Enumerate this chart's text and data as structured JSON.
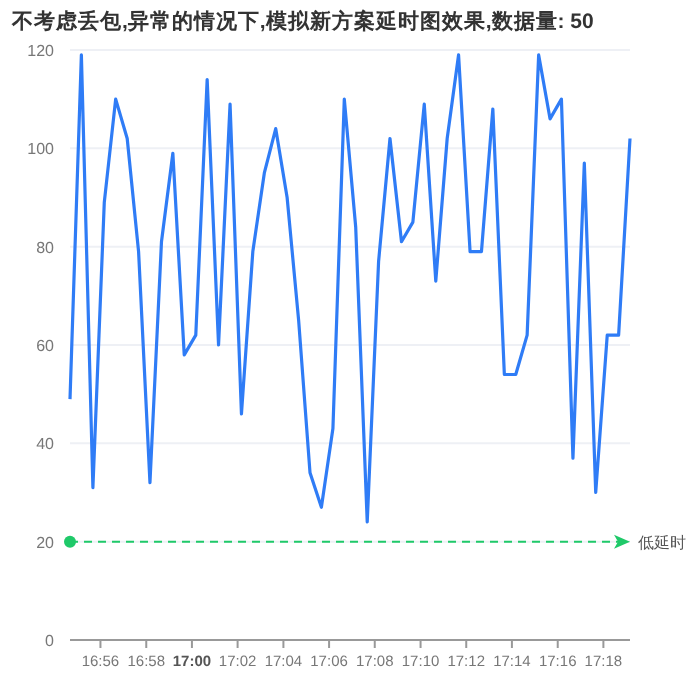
{
  "chart_data": {
    "type": "line",
    "title": "不考虑丢包,异常的情况下,模拟新方案延时图效果,数据量: 50",
    "x": [
      16.9111,
      16.9194,
      16.9278,
      16.9361,
      16.9444,
      16.9528,
      16.9611,
      16.9694,
      16.9778,
      16.9861,
      16.9944,
      17.0028,
      17.0111,
      17.0194,
      17.0278,
      17.0361,
      17.0444,
      17.0528,
      17.0611,
      17.0694,
      17.0778,
      17.0861,
      17.0944,
      17.1028,
      17.1111,
      17.1194,
      17.1278,
      17.1361,
      17.1444,
      17.1528,
      17.1611,
      17.1694,
      17.1778,
      17.1861,
      17.1944,
      17.2028,
      17.2111,
      17.2194,
      17.2278,
      17.2361,
      17.2444,
      17.2528,
      17.2611,
      17.2694,
      17.2778,
      17.2861,
      17.2944,
      17.3028,
      17.3111,
      17.3194
    ],
    "series": [
      {
        "color": "#2f7cf6",
        "values": [
          49,
          119,
          31,
          89,
          110,
          102,
          79,
          32,
          81,
          99,
          58,
          62,
          114,
          60,
          109,
          46,
          79,
          95,
          104,
          90,
          65,
          34,
          27,
          43,
          110,
          84,
          24,
          77,
          102,
          81,
          85,
          109,
          73,
          102,
          119,
          79,
          79,
          108,
          54,
          54,
          62,
          119,
          106,
          110,
          37,
          97,
          30,
          62,
          62,
          102
        ]
      }
    ],
    "xlim": [
      16.9111,
      17.3194
    ],
    "xticks": [
      {
        "value": 16.9333,
        "label": "16:56"
      },
      {
        "value": 16.9667,
        "label": "16:58"
      },
      {
        "value": 17,
        "label": "17:00"
      },
      {
        "value": 17.0333,
        "label": "17:02"
      },
      {
        "value": 17.0667,
        "label": "17:04"
      },
      {
        "value": 17.1,
        "label": "17:06"
      },
      {
        "value": 17.1333,
        "label": "17:08"
      },
      {
        "value": 17.1667,
        "label": "17:10"
      },
      {
        "value": 17.2,
        "label": "17:12"
      },
      {
        "value": 17.2333,
        "label": "17:14"
      },
      {
        "value": 17.2667,
        "label": "17:16"
      },
      {
        "value": 17.3,
        "label": "17:18"
      }
    ],
    "ylim": [
      0,
      120
    ],
    "yticks": [
      0,
      20,
      40,
      60,
      80,
      100,
      120
    ],
    "ref_lines": [
      {
        "axis": "y",
        "value": 20,
        "label": "低延时",
        "color": "#1fc969",
        "line_style": "dashed"
      }
    ],
    "grid": "y",
    "marker": "none",
    "line_style": "solid"
  }
}
